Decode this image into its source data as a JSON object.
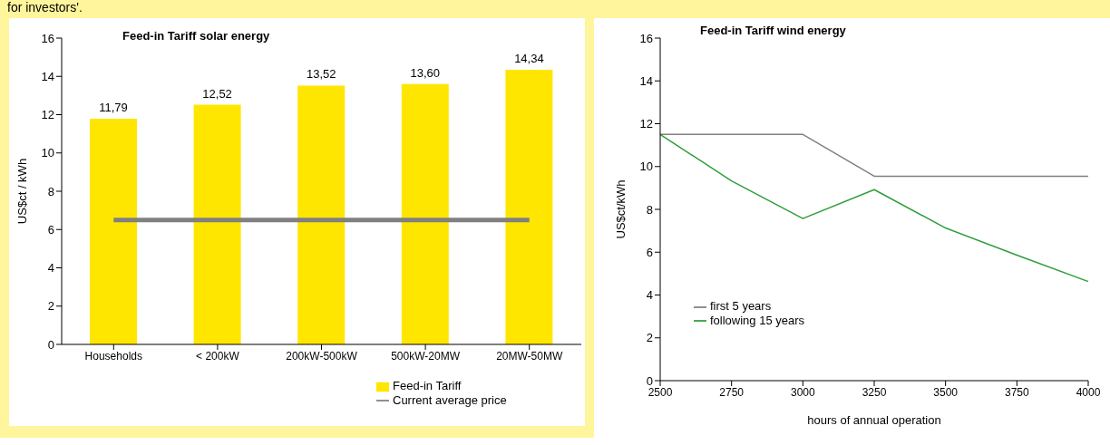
{
  "chart_data": [
    {
      "type": "bar",
      "title": "Feed-in Tariff solar energy",
      "ylabel": "US$ct / kWh",
      "annotations": [
        "for investors'."
      ],
      "categories": [
        "Households",
        "< 200kW",
        "200kW-500kW",
        "500kW-20MW",
        "20MW-50MW"
      ],
      "series": [
        {
          "name": "Feed-in Tariff",
          "type": "bar",
          "color": "#ffe600",
          "values": [
            11.79,
            12.52,
            13.52,
            13.6,
            14.34
          ],
          "value_labels": [
            "11,79",
            "12,52",
            "13,52",
            "13,60",
            "14,34"
          ]
        },
        {
          "name": "Current average price",
          "type": "line",
          "color": "#808080",
          "values": [
            6.5,
            6.5,
            6.5,
            6.5,
            6.5
          ]
        }
      ],
      "ylim": [
        0,
        16
      ],
      "yticks": [
        0,
        2,
        4,
        6,
        8,
        10,
        12,
        14,
        16
      ],
      "grid": false,
      "legend": "bottom right",
      "marker": "none"
    },
    {
      "type": "line",
      "title": "Feed-in Tariff wind energy",
      "ylabel": "US$ct/kWh",
      "xlabel": "hours of annual operation",
      "categories": [
        "2500",
        "2750",
        "3000",
        "3250",
        "3500",
        "3750",
        "4000"
      ],
      "series": [
        {
          "name": "first 5 years",
          "color": "#808080",
          "values": [
            11.5,
            11.5,
            11.5,
            9.55,
            9.55,
            9.55,
            9.55
          ]
        },
        {
          "name": "following 15 years",
          "color": "#2e9e3a",
          "values": [
            11.5,
            9.33,
            7.57,
            8.92,
            7.13,
            5.86,
            4.63
          ]
        }
      ],
      "ylim": [
        0,
        16
      ],
      "yticks": [
        0,
        2,
        4,
        6,
        8,
        10,
        12,
        14,
        16
      ],
      "grid": false,
      "legend": "bottom left",
      "marker": "none"
    }
  ]
}
